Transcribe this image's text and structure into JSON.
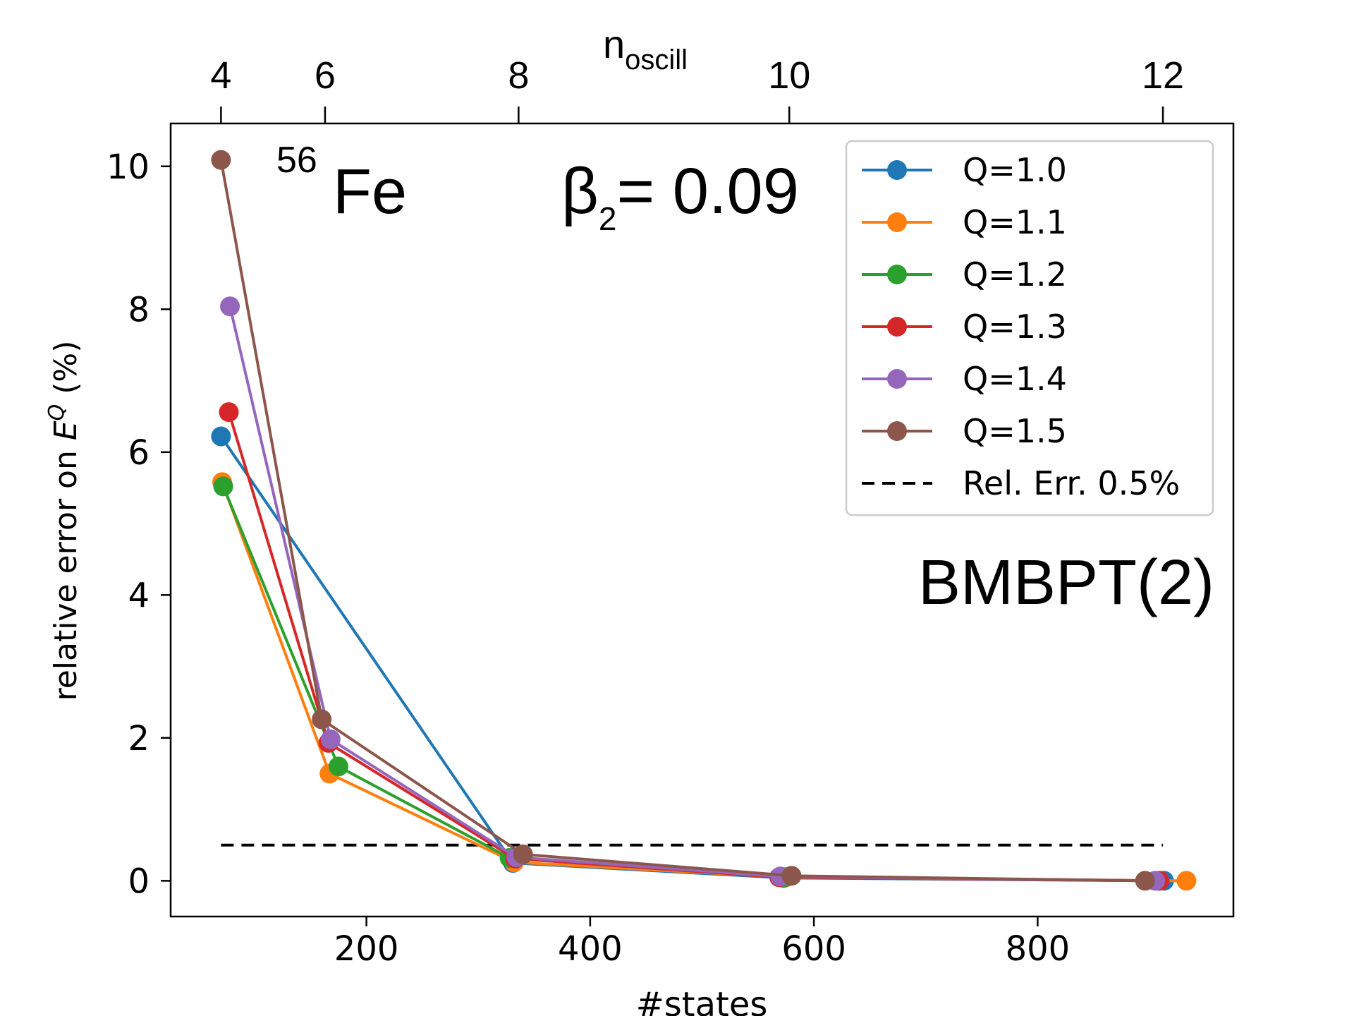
{
  "chart_data": {
    "type": "line",
    "xlabel": "#states",
    "ylabel_prefix": "relative error on ",
    "ylabel_var": "E",
    "ylabel_sup": "Q",
    "ylabel_suffix": " (%)",
    "top_xlabel_main": "n",
    "top_xlabel_sub": "oscill",
    "xlim": [
      25,
      975
    ],
    "ylim": [
      -0.5,
      10.6
    ],
    "x_ticks": [
      200,
      400,
      600,
      800
    ],
    "y_ticks": [
      0,
      2,
      4,
      6,
      8,
      10
    ],
    "top_ticks": [
      {
        "label": "4",
        "x": 70
      },
      {
        "label": "6",
        "x": 163
      },
      {
        "label": "8",
        "x": 336
      },
      {
        "label": "10",
        "x": 578
      },
      {
        "label": "12",
        "x": 912
      }
    ],
    "annotations": {
      "nucleus_mass": "56",
      "nucleus_symbol": "Fe",
      "beta_symbol": "β",
      "beta_sub": "2",
      "beta_value": "= 0.09",
      "method": "BMBPT(2)"
    },
    "legend_position": "top-right",
    "series": [
      {
        "name": "Q=1.0",
        "color": "#1f77b4",
        "x": [
          70,
          331,
          573,
          913
        ],
        "y": [
          6.22,
          0.25,
          0.04,
          0.0
        ]
      },
      {
        "name": "Q=1.1",
        "color": "#ff7f0e",
        "x": [
          71,
          167,
          332,
          575,
          933
        ],
        "y": [
          5.58,
          1.5,
          0.26,
          0.05,
          0.0
        ]
      },
      {
        "name": "Q=1.2",
        "color": "#2ca02c",
        "x": [
          72,
          175,
          328,
          574,
          908
        ],
        "y": [
          5.52,
          1.6,
          0.32,
          0.05,
          0.0
        ]
      },
      {
        "name": "Q=1.3",
        "color": "#d62728",
        "x": [
          77,
          166,
          333,
          569,
          909
        ],
        "y": [
          6.56,
          1.93,
          0.31,
          0.05,
          0.0
        ]
      },
      {
        "name": "Q=1.4",
        "color": "#9467bd",
        "x": [
          78,
          168,
          334,
          570,
          905
        ],
        "y": [
          8.04,
          1.98,
          0.33,
          0.06,
          0.0
        ]
      },
      {
        "name": "Q=1.5",
        "color": "#8c564b",
        "x": [
          70,
          160,
          340,
          580,
          896
        ],
        "y": [
          10.09,
          2.26,
          0.37,
          0.07,
          0.0
        ]
      }
    ],
    "reference_line": {
      "name": "Rel. Err. 0.5%",
      "y": 0.5,
      "x": [
        70,
        912
      ],
      "color": "#000000"
    }
  }
}
